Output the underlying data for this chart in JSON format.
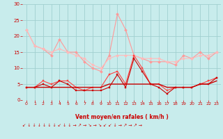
{
  "x": [
    0,
    1,
    2,
    3,
    4,
    5,
    6,
    7,
    8,
    9,
    10,
    11,
    12,
    13,
    14,
    15,
    16,
    17,
    18,
    19,
    20,
    21,
    22,
    23
  ],
  "series": [
    {
      "name": "rafales_max",
      "color": "#ff9999",
      "values": [
        22,
        17,
        16,
        14,
        19,
        15,
        15,
        12,
        10,
        9,
        14,
        27,
        22,
        14,
        13,
        12,
        12,
        12,
        11,
        14,
        13,
        15,
        13,
        15
      ],
      "marker": "D",
      "markersize": 2.0,
      "linewidth": 0.8
    },
    {
      "name": "vent_moyen_max",
      "color": "#ffbbbb",
      "values": [
        22,
        17,
        16,
        15,
        16,
        15,
        14,
        13,
        11,
        10,
        13,
        14,
        14,
        14,
        13,
        13,
        13,
        12,
        12,
        13,
        13,
        14,
        14,
        15
      ],
      "marker": "D",
      "markersize": 2.0,
      "linewidth": 0.8
    },
    {
      "name": "vent_moyen",
      "color": "#ff4444",
      "values": [
        4,
        4,
        6,
        5,
        6,
        6,
        4,
        3,
        4,
        4,
        8,
        9,
        5,
        14,
        10,
        5,
        5,
        3,
        4,
        4,
        4,
        5,
        6,
        7
      ],
      "marker": "s",
      "markersize": 2.0,
      "linewidth": 0.8
    },
    {
      "name": "vent_min",
      "color": "#cc0000",
      "values": [
        4,
        4,
        5,
        4,
        6,
        5,
        3,
        3,
        3,
        3,
        4,
        8,
        4,
        13,
        9,
        5,
        4,
        2,
        4,
        4,
        4,
        5,
        5,
        7
      ],
      "marker": "s",
      "markersize": 2.0,
      "linewidth": 0.8
    },
    {
      "name": "ligne_basse",
      "color": "#cc0000",
      "values": [
        4,
        4,
        4,
        4,
        4,
        4,
        4,
        4,
        4,
        4,
        5,
        5,
        5,
        5,
        5,
        5,
        5,
        4,
        4,
        4,
        4,
        5,
        5,
        6
      ],
      "marker": null,
      "markersize": 0,
      "linewidth": 1.0
    }
  ],
  "xlim": [
    -0.5,
    23.5
  ],
  "ylim": [
    0,
    30
  ],
  "yticks": [
    0,
    5,
    10,
    15,
    20,
    25,
    30
  ],
  "xticks": [
    0,
    1,
    2,
    3,
    4,
    5,
    6,
    7,
    8,
    9,
    10,
    11,
    12,
    13,
    14,
    15,
    16,
    17,
    18,
    19,
    20,
    21,
    22,
    23
  ],
  "xlabel": "Vent moyen/en rafales ( km/h )",
  "arrows": "↙ ↓ ↓ ↓ ↓ ↓ ↓ ↙ ↓ ↓ → ↗ → ↘ → ↘ ↙ ↙ ↓ → ↗ → ↗ →",
  "bg_color": "#c8ecec",
  "grid_color": "#a0d0d0",
  "tick_color": "#cc0000",
  "xlabel_color": "#cc0000"
}
